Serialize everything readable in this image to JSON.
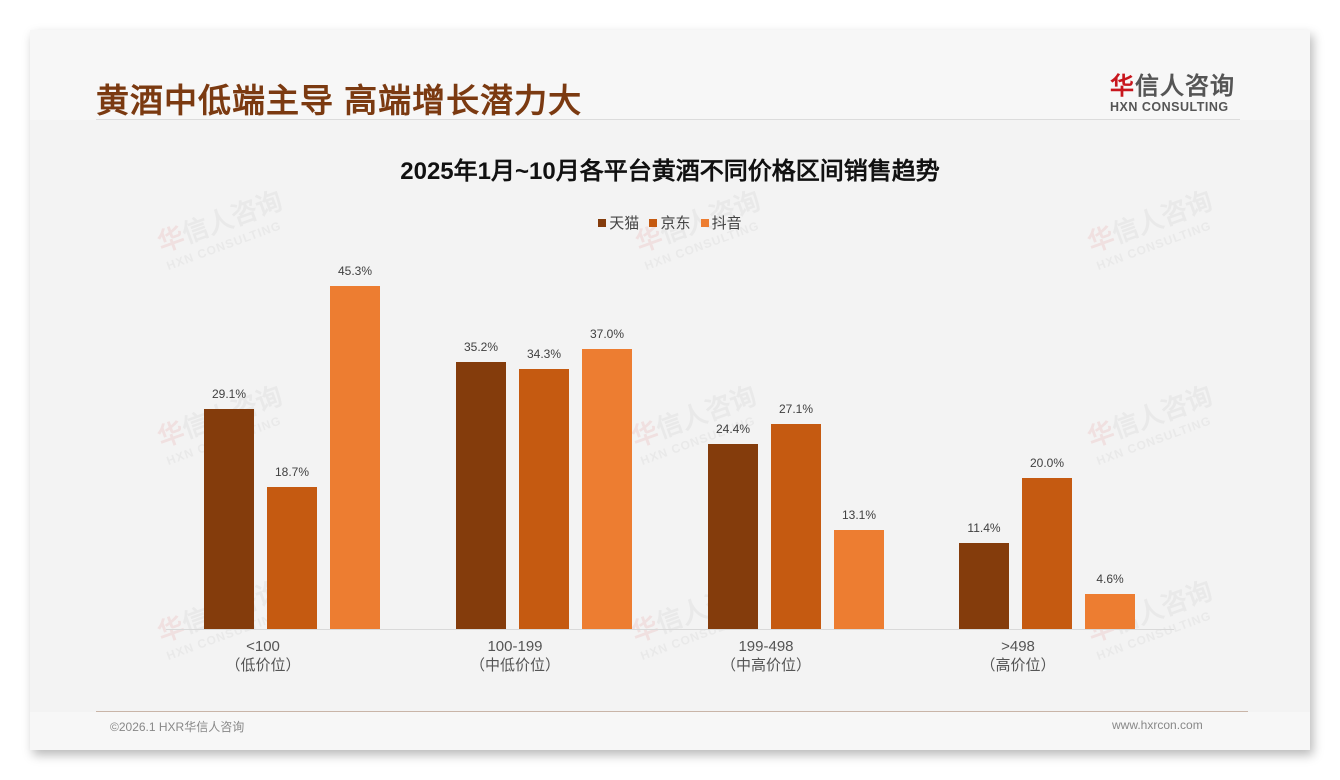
{
  "header": {
    "title": "黄酒中低端主导 高端增长潜力大",
    "logo": {
      "cn_first": "华",
      "cn_rest": "信人咨询",
      "en": "HXN CONSULTING"
    }
  },
  "watermark": {
    "cn_first": "华",
    "cn_rest": "信人咨询",
    "en": "HXN CONSULTING"
  },
  "colors": {
    "tmall": "#843c0c",
    "jd": "#c55a11",
    "douyin": "#ed7d31",
    "title": "#7b3a11",
    "background": "#f3f3f3"
  },
  "chart_data": {
    "type": "bar",
    "title": "2025年1月~10月各平台黄酒不同价格区间销售趋势",
    "xlabel": "",
    "ylabel": "",
    "ylim": [
      0,
      50
    ],
    "grid": false,
    "legend_position": "top",
    "categories": [
      "<100（低价位）",
      "100-199（中低价位）",
      "199-498（中高价位）",
      ">498（高价位）"
    ],
    "category_labels": [
      {
        "range": "<100",
        "tier": "（低价位）"
      },
      {
        "range": "100-199",
        "tier": "（中低价位）"
      },
      {
        "range": "199-498",
        "tier": "（中高价位）"
      },
      {
        "range": ">498",
        "tier": "（高价位）"
      }
    ],
    "series": [
      {
        "name": "天猫",
        "color": "#843c0c",
        "values": [
          29.1,
          35.2,
          24.4,
          11.4
        ],
        "labels": [
          "29.1%",
          "35.2%",
          "24.4%",
          "11.4%"
        ]
      },
      {
        "name": "京东",
        "color": "#c55a11",
        "values": [
          18.7,
          34.3,
          27.1,
          20.0
        ],
        "labels": [
          "18.7%",
          "34.3%",
          "27.1%",
          "20.0%"
        ]
      },
      {
        "name": "抖音",
        "color": "#ed7d31",
        "values": [
          45.3,
          37.0,
          13.1,
          4.6
        ],
        "labels": [
          "45.3%",
          "37.0%",
          "13.1%",
          "4.6%"
        ]
      }
    ],
    "value_unit": "%"
  },
  "footer": {
    "copyright": "©2026.1 HXR华信人咨询",
    "website": "www.hxrcon.com"
  }
}
